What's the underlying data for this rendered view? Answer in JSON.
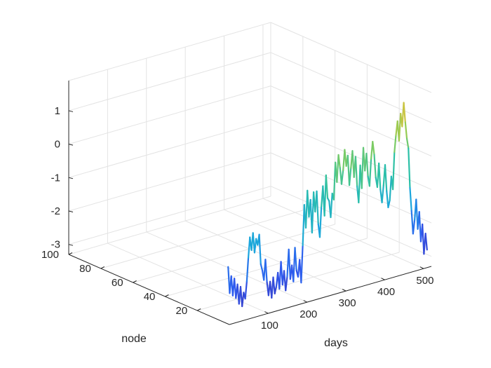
{
  "chart_data": {
    "type": "line",
    "title": "",
    "xlabel": "days",
    "ylabel": "node",
    "zlabel": "",
    "x_ticks": [
      100,
      200,
      300,
      400,
      500
    ],
    "y_ticks": [
      20,
      40,
      60,
      80,
      100
    ],
    "z_ticks": [
      1,
      0,
      -1,
      -2,
      -3
    ],
    "xlim": [
      0,
      520
    ],
    "ylim": [
      0,
      100
    ],
    "zlim": [
      -3.3,
      1.9
    ],
    "grid": true,
    "colormap": [
      "#3e26a8",
      "#2f5bf0",
      "#1aa4e0",
      "#2cc1a6",
      "#8ccd56",
      "#f1bf35"
    ],
    "series": [
      {
        "node": 1,
        "days": [
          1,
          5,
          9,
          13,
          17,
          21,
          25,
          29,
          33,
          37,
          41,
          45,
          49,
          53,
          57,
          61,
          65,
          69,
          73,
          77,
          81,
          85,
          89,
          93,
          97,
          101,
          105,
          109,
          113,
          117,
          121,
          125,
          129,
          133,
          137,
          141,
          145,
          149,
          153,
          157,
          161,
          165,
          169,
          173,
          177,
          181,
          185,
          189,
          193,
          197,
          201,
          205,
          209,
          213,
          217,
          221,
          225,
          229,
          233,
          237,
          241,
          245,
          249,
          253,
          257,
          261,
          265,
          269,
          273,
          277,
          281,
          285,
          289,
          293,
          297,
          301,
          305,
          309,
          313,
          317,
          321,
          325,
          329,
          333,
          337,
          341,
          345,
          349,
          353,
          357,
          361,
          365,
          369,
          373,
          377,
          381,
          385,
          389,
          393,
          397,
          401,
          405,
          409,
          413,
          417,
          421,
          425,
          429,
          433,
          437,
          441,
          445,
          449,
          453,
          457,
          461,
          465,
          469,
          473,
          477,
          481,
          485,
          489,
          493,
          497,
          501,
          505,
          509,
          513
        ],
        "values": [
          -1.6,
          -2.4,
          -1.9,
          -2.5,
          -2.0,
          -2.6,
          -2.2,
          -2.8,
          -2.3,
          -2.9,
          -2.5,
          -2.7,
          -2.2,
          -1.5,
          -0.9,
          -1.3,
          -0.8,
          -1.4,
          -1.0,
          -1.2,
          -0.9,
          -1.8,
          -2.0,
          -2.3,
          -1.7,
          -2.4,
          -2.8,
          -2.4,
          -2.9,
          -2.3,
          -2.8,
          -2.6,
          -2.2,
          -2.7,
          -1.9,
          -2.6,
          -2.2,
          -2.8,
          -2.4,
          -1.6,
          -2.5,
          -2.1,
          -2.6,
          -1.6,
          -2.3,
          -2.5,
          -2.0,
          -2.7,
          -1.6,
          -0.4,
          -1.1,
          0.0,
          -0.8,
          -0.3,
          -1.3,
          -0.1,
          -0.7,
          -0.1,
          -1.1,
          -1.5,
          -0.6,
          0.0,
          -0.9,
          0.3,
          -0.4,
          -0.5,
          -1.0,
          -0.3,
          -0.5,
          0.6,
          0.0,
          0.8,
          0.4,
          -0.1,
          0.3,
          0.9,
          0.4,
          0.7,
          -0.2,
          0.3,
          0.8,
          0.0,
          0.6,
          -0.3,
          -0.8,
          0.3,
          -0.4,
          0.8,
          0.1,
          0.6,
          -0.1,
          -0.4,
          0.4,
          0.9,
          0.5,
          -0.2,
          -0.5,
          0.2,
          -0.6,
          -1.0,
          -0.5,
          0.1,
          -0.7,
          -1.2,
          -1.0,
          -0.3,
          -0.7,
          0.4,
          0.9,
          1.3,
          0.7,
          1.5,
          1.1,
          1.8,
          1.2,
          0.7,
          0.4,
          -0.8,
          -1.5,
          -2.2,
          -1.8,
          -1.2,
          -2.1,
          -1.6,
          -2.5,
          -2.0,
          -2.9,
          -2.3,
          -2.8
        ]
      }
    ]
  }
}
